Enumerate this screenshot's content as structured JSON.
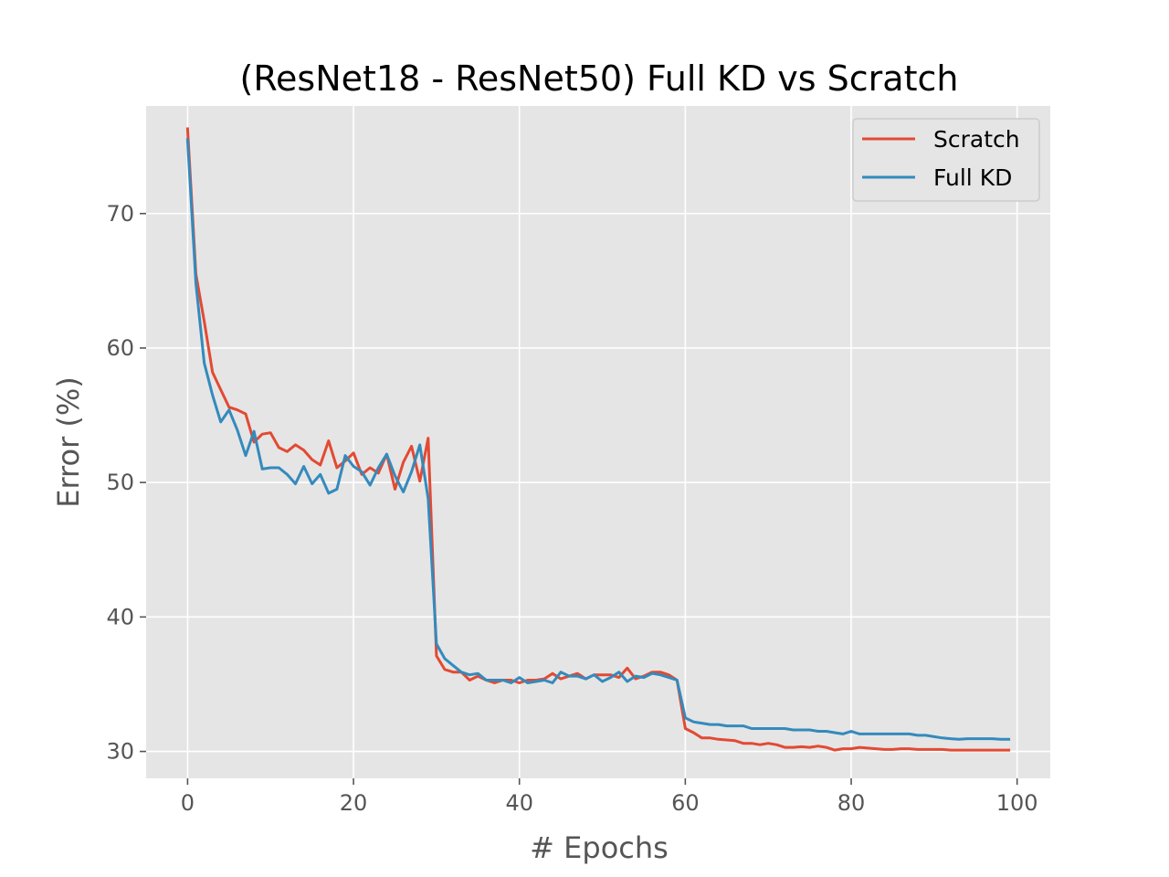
{
  "chart_data": {
    "type": "line",
    "title": "(ResNet18 - ResNet50) Full KD vs Scratch",
    "xlabel": "# Epochs",
    "ylabel": "Error (%)",
    "xlim": [
      -5,
      104
    ],
    "ylim": [
      28,
      78
    ],
    "xticks": [
      0,
      20,
      40,
      60,
      80,
      100
    ],
    "yticks": [
      30,
      40,
      50,
      60,
      70
    ],
    "grid": true,
    "legend_position": "top-right",
    "series": [
      {
        "name": "Scratch",
        "color": "#e24a33",
        "x": [
          0,
          1,
          2,
          3,
          4,
          5,
          6,
          7,
          8,
          9,
          10,
          11,
          12,
          13,
          14,
          15,
          16,
          17,
          18,
          19,
          20,
          21,
          22,
          23,
          24,
          25,
          26,
          27,
          28,
          29,
          30,
          31,
          32,
          33,
          34,
          35,
          36,
          37,
          38,
          39,
          40,
          41,
          42,
          43,
          44,
          45,
          46,
          47,
          48,
          49,
          50,
          51,
          52,
          53,
          54,
          55,
          56,
          57,
          58,
          59,
          60,
          61,
          62,
          63,
          64,
          65,
          66,
          67,
          68,
          69,
          70,
          71,
          72,
          73,
          74,
          75,
          76,
          77,
          78,
          79,
          80,
          81,
          82,
          83,
          84,
          85,
          86,
          87,
          88,
          89,
          90,
          91,
          92,
          93,
          94,
          95,
          96,
          97,
          98,
          99
        ],
        "values": [
          76.3,
          65.5,
          62.0,
          58.2,
          56.9,
          55.6,
          55.4,
          55.1,
          53.0,
          53.6,
          53.7,
          52.6,
          52.3,
          52.8,
          52.4,
          51.7,
          51.3,
          53.1,
          51.1,
          51.6,
          52.2,
          50.6,
          51.1,
          50.7,
          52.1,
          49.5,
          51.5,
          52.7,
          50.1,
          53.3,
          37.1,
          36.1,
          35.9,
          35.9,
          35.3,
          35.6,
          35.3,
          35.1,
          35.3,
          35.3,
          35.1,
          35.3,
          35.3,
          35.4,
          35.8,
          35.4,
          35.6,
          35.8,
          35.4,
          35.7,
          35.7,
          35.7,
          35.5,
          36.2,
          35.4,
          35.6,
          35.9,
          35.9,
          35.7,
          35.3,
          31.7,
          31.4,
          31.0,
          31.0,
          30.9,
          30.85,
          30.8,
          30.6,
          30.6,
          30.5,
          30.6,
          30.5,
          30.3,
          30.3,
          30.35,
          30.3,
          30.4,
          30.3,
          30.1,
          30.2,
          30.2,
          30.3,
          30.25,
          30.2,
          30.15,
          30.15,
          30.2,
          30.2,
          30.15,
          30.15,
          30.15,
          30.15,
          30.1,
          30.1,
          30.1,
          30.1,
          30.1,
          30.1,
          30.1,
          30.1
        ]
      },
      {
        "name": "Full KD",
        "color": "#348abd",
        "x": [
          0,
          1,
          2,
          3,
          4,
          5,
          6,
          7,
          8,
          9,
          10,
          11,
          12,
          13,
          14,
          15,
          16,
          17,
          18,
          19,
          20,
          21,
          22,
          23,
          24,
          25,
          26,
          27,
          28,
          29,
          30,
          31,
          32,
          33,
          34,
          35,
          36,
          37,
          38,
          39,
          40,
          41,
          42,
          43,
          44,
          45,
          46,
          47,
          48,
          49,
          50,
          51,
          52,
          53,
          54,
          55,
          56,
          57,
          58,
          59,
          60,
          61,
          62,
          63,
          64,
          65,
          66,
          67,
          68,
          69,
          70,
          71,
          72,
          73,
          74,
          75,
          76,
          77,
          78,
          79,
          80,
          81,
          82,
          83,
          84,
          85,
          86,
          87,
          88,
          89,
          90,
          91,
          92,
          93,
          94,
          95,
          96,
          97,
          98,
          99
        ],
        "values": [
          75.5,
          64.8,
          58.9,
          56.5,
          54.5,
          55.4,
          53.9,
          52.0,
          53.8,
          51.0,
          51.1,
          51.1,
          50.6,
          49.9,
          51.2,
          49.9,
          50.6,
          49.2,
          49.5,
          52.0,
          51.2,
          50.8,
          49.8,
          51.1,
          52.1,
          50.5,
          49.3,
          50.8,
          52.8,
          48.8,
          38.0,
          36.9,
          36.4,
          35.9,
          35.7,
          35.8,
          35.3,
          35.3,
          35.3,
          35.1,
          35.5,
          35.1,
          35.2,
          35.3,
          35.1,
          35.9,
          35.6,
          35.6,
          35.4,
          35.7,
          35.2,
          35.5,
          35.9,
          35.2,
          35.6,
          35.5,
          35.8,
          35.7,
          35.5,
          35.3,
          32.5,
          32.2,
          32.1,
          32.0,
          32.0,
          31.9,
          31.9,
          31.9,
          31.7,
          31.7,
          31.7,
          31.7,
          31.7,
          31.6,
          31.6,
          31.6,
          31.5,
          31.5,
          31.4,
          31.3,
          31.5,
          31.3,
          31.3,
          31.3,
          31.3,
          31.3,
          31.3,
          31.3,
          31.2,
          31.2,
          31.1,
          31.0,
          30.95,
          30.9,
          30.95,
          30.95,
          30.95,
          30.95,
          30.9,
          30.9
        ]
      }
    ]
  }
}
